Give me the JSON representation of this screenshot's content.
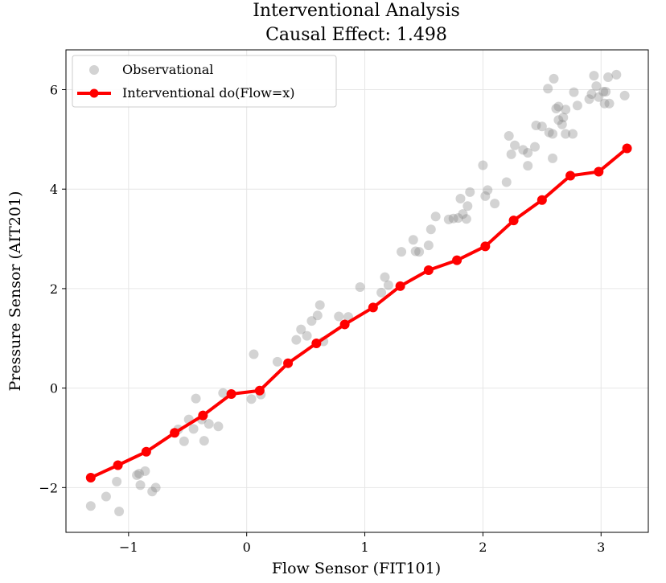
{
  "chart_data": {
    "type": "scatter",
    "title": [
      "Interventional Analysis",
      "Causal Effect: 1.498"
    ],
    "xlabel": "Flow Sensor (FIT101)",
    "ylabel": "Pressure Sensor (AIT201)",
    "xlim": [
      -1.53,
      3.4
    ],
    "ylim": [
      -2.9,
      6.8
    ],
    "x_ticks": [
      -1,
      0,
      1,
      2,
      3
    ],
    "x_tick_labels": [
      "−1",
      "0",
      "1",
      "2",
      "3"
    ],
    "y_ticks": [
      -2,
      0,
      2,
      4,
      6
    ],
    "y_tick_labels": [
      "−2",
      "0",
      "2",
      "4",
      "6"
    ],
    "grid": true,
    "legend_position": "upper-left",
    "series": [
      {
        "name": "Observational",
        "kind": "scatter",
        "color": "#808080",
        "points": [
          [
            -1.32,
            -2.37
          ],
          [
            -1.19,
            -2.18
          ],
          [
            -1.1,
            -1.88
          ],
          [
            -1.08,
            -2.48
          ],
          [
            -0.93,
            -1.75
          ],
          [
            -0.91,
            -1.72
          ],
          [
            -0.9,
            -1.95
          ],
          [
            -0.86,
            -1.67
          ],
          [
            -0.8,
            -2.08
          ],
          [
            -0.77,
            -2.0
          ],
          [
            -0.58,
            -0.83
          ],
          [
            -0.53,
            -1.07
          ],
          [
            -0.49,
            -0.63
          ],
          [
            -0.45,
            -0.82
          ],
          [
            -0.43,
            -0.21
          ],
          [
            -0.38,
            -0.63
          ],
          [
            -0.36,
            -1.06
          ],
          [
            -0.32,
            -0.72
          ],
          [
            -0.24,
            -0.77
          ],
          [
            -0.2,
            -0.1
          ],
          [
            0.04,
            -0.22
          ],
          [
            0.06,
            0.68
          ],
          [
            0.12,
            -0.13
          ],
          [
            0.26,
            0.53
          ],
          [
            0.42,
            0.97
          ],
          [
            0.46,
            1.18
          ],
          [
            0.51,
            1.05
          ],
          [
            0.55,
            1.35
          ],
          [
            0.6,
            1.46
          ],
          [
            0.62,
            1.67
          ],
          [
            0.65,
            0.94
          ],
          [
            0.78,
            1.44
          ],
          [
            0.86,
            1.43
          ],
          [
            0.96,
            2.03
          ],
          [
            1.14,
            1.92
          ],
          [
            1.17,
            2.23
          ],
          [
            1.2,
            2.07
          ],
          [
            1.31,
            2.74
          ],
          [
            1.41,
            2.98
          ],
          [
            1.43,
            2.75
          ],
          [
            1.46,
            2.74
          ],
          [
            1.54,
            2.87
          ],
          [
            1.56,
            3.19
          ],
          [
            1.6,
            3.45
          ],
          [
            1.71,
            3.39
          ],
          [
            1.75,
            3.41
          ],
          [
            1.79,
            3.42
          ],
          [
            1.81,
            3.81
          ],
          [
            1.83,
            3.5
          ],
          [
            1.86,
            3.4
          ],
          [
            1.87,
            3.66
          ],
          [
            1.89,
            3.94
          ],
          [
            2.0,
            4.48
          ],
          [
            2.02,
            3.86
          ],
          [
            2.04,
            3.98
          ],
          [
            2.1,
            3.71
          ],
          [
            2.2,
            4.14
          ],
          [
            2.22,
            5.07
          ],
          [
            2.24,
            4.7
          ],
          [
            2.27,
            4.88
          ],
          [
            2.34,
            4.79
          ],
          [
            2.38,
            4.47
          ],
          [
            2.38,
            4.73
          ],
          [
            2.44,
            4.85
          ],
          [
            2.45,
            5.28
          ],
          [
            2.5,
            5.26
          ],
          [
            2.55,
            6.02
          ],
          [
            2.56,
            5.14
          ],
          [
            2.59,
            5.11
          ],
          [
            2.59,
            4.62
          ],
          [
            2.6,
            6.22
          ],
          [
            2.62,
            5.62
          ],
          [
            2.64,
            5.66
          ],
          [
            2.64,
            5.39
          ],
          [
            2.67,
            5.3
          ],
          [
            2.68,
            5.44
          ],
          [
            2.7,
            5.11
          ],
          [
            2.7,
            5.6
          ],
          [
            2.76,
            5.11
          ],
          [
            2.77,
            5.95
          ],
          [
            2.8,
            5.68
          ],
          [
            2.9,
            5.81
          ],
          [
            2.92,
            5.91
          ],
          [
            2.94,
            6.28
          ],
          [
            2.96,
            6.07
          ],
          [
            2.98,
            5.85
          ],
          [
            3.02,
            5.96
          ],
          [
            3.03,
            5.72
          ],
          [
            3.04,
            5.96
          ],
          [
            3.06,
            6.25
          ],
          [
            3.07,
            5.72
          ],
          [
            3.13,
            6.3
          ],
          [
            3.2,
            5.88
          ]
        ]
      },
      {
        "name": "Interventional do(Flow=x)",
        "kind": "line",
        "color": "#ff0000",
        "x": [
          -1.32,
          -1.09,
          -0.85,
          -0.61,
          -0.37,
          -0.13,
          0.11,
          0.35,
          0.59,
          0.83,
          1.07,
          1.3,
          1.54,
          1.78,
          2.02,
          2.26,
          2.5,
          2.74,
          2.98,
          3.22
        ],
        "y": [
          -1.8,
          -1.55,
          -1.28,
          -0.9,
          -0.55,
          -0.12,
          -0.05,
          0.5,
          0.9,
          1.28,
          1.62,
          2.05,
          2.37,
          2.57,
          2.85,
          3.37,
          3.78,
          4.27,
          4.35,
          4.82
        ]
      }
    ]
  }
}
